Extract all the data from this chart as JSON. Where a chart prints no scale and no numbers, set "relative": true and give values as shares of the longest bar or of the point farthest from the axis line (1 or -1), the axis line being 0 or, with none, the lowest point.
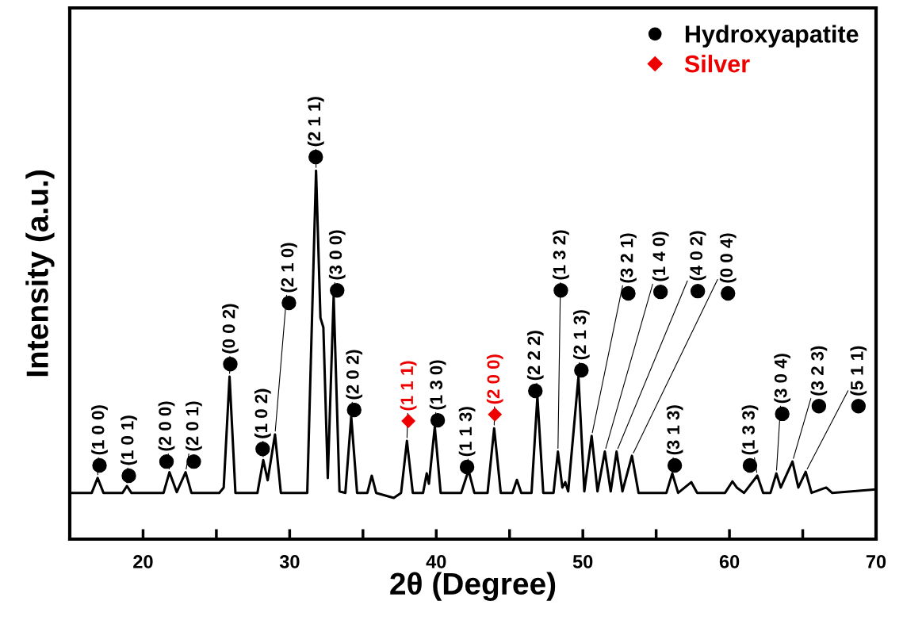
{
  "chart_data": {
    "type": "line",
    "relative": true,
    "xlabel": "2θ (Degree)",
    "ylabel": "Intensity (a.u.)",
    "xlim": [
      15,
      70
    ],
    "xticks": [
      20,
      {
        "value": 25,
        "label": null
      },
      30,
      {
        "value": 35,
        "label": null
      },
      40,
      {
        "value": 45,
        "label": null
      },
      50,
      {
        "value": 55,
        "label": null
      },
      60,
      {
        "value": 65,
        "label": null
      },
      70
    ],
    "legend": "top right",
    "grid": false,
    "x": [
      15,
      16.5,
      16.9,
      17.3,
      18.6,
      18.9,
      19.2,
      20.5,
      21.4,
      21.8,
      22.3,
      22.9,
      23.3,
      25.2,
      25.5,
      25.9,
      26.3,
      27.8,
      28.2,
      28.5,
      29.0,
      29.4,
      31.2,
      31.8,
      32.1,
      32.3,
      32.6,
      33.0,
      33.4,
      33.8,
      34.2,
      34.6,
      35.3,
      35.6,
      35.9,
      37.1,
      37.6,
      38.0,
      38.4,
      39.1,
      39.35,
      39.5,
      39.9,
      40.3,
      41.7,
      42.2,
      42.6,
      43.5,
      43.95,
      44.4,
      45.2,
      45.5,
      45.8,
      46.5,
      46.9,
      47.3,
      48.0,
      48.3,
      48.6,
      48.8,
      49.0,
      49.7,
      50.1,
      50.6,
      51.0,
      51.5,
      51.9,
      52.3,
      52.7,
      53.35,
      53.8,
      55.7,
      56.1,
      56.5,
      57.4,
      57.8,
      59.7,
      60.2,
      60.5,
      61.0,
      61.9,
      62.3,
      62.8,
      63.2,
      63.5,
      64.3,
      64.7,
      65.2,
      65.6,
      66.6,
      67.0,
      70
    ],
    "series": [
      {
        "color": "#000000",
        "values": [
          0.121,
          0.121,
          0.16,
          0.121,
          0.121,
          0.139,
          0.121,
          0.121,
          0.121,
          0.175,
          0.123,
          0.175,
          0.121,
          0.121,
          0.135,
          0.425,
          0.121,
          0.121,
          0.207,
          0.154,
          0.274,
          0.121,
          0.121,
          0.964,
          0.579,
          0.554,
          0.16,
          0.636,
          0.125,
          0.121,
          0.321,
          0.121,
          0.121,
          0.166,
          0.121,
          0.108,
          0.121,
          0.257,
          0.121,
          0.121,
          0.172,
          0.145,
          0.294,
          0.121,
          0.121,
          0.18,
          0.121,
          0.121,
          0.29,
          0.121,
          0.121,
          0.155,
          0.121,
          0.121,
          0.373,
          0.121,
          0.121,
          0.229,
          0.135,
          0.149,
          0.125,
          0.425,
          0.125,
          0.27,
          0.125,
          0.229,
          0.125,
          0.229,
          0.125,
          0.218,
          0.121,
          0.121,
          0.172,
          0.121,
          0.149,
          0.121,
          0.121,
          0.151,
          0.135,
          0.121,
          0.166,
          0.121,
          0.121,
          0.172,
          0.135,
          0.203,
          0.135,
          0.176,
          0.121,
          0.135,
          0.121,
          0.13
        ]
      },
      {
        "type": "scatter",
        "name": "Hydroxyapatite",
        "color": "#000000",
        "marker": "circle",
        "x": [
          17.03,
          19.03,
          21.6,
          23.46,
          25.95,
          28.16,
          29.95,
          31.78,
          33.24,
          34.4,
          40.1,
          42.1,
          46.76,
          48.5,
          49.9,
          53.1,
          55.3,
          57.84,
          59.9,
          56.27,
          61.4,
          63.6,
          66.1,
          68.8
        ],
        "values": [
          0.193,
          0.166,
          0.203,
          0.203,
          0.458,
          0.236,
          0.618,
          1,
          0.651,
          0.338,
          0.311,
          0.189,
          0.388,
          0.651,
          0.442,
          0.643,
          0.647,
          0.649,
          0.643,
          0.193,
          0.193,
          0.328,
          0.348,
          0.348
        ]
      },
      {
        "type": "scatter",
        "name": "Silver",
        "color": "#ee0000",
        "marker": "diamond",
        "x": [
          38.1,
          44.0
        ],
        "values": [
          0.309,
          0.326
        ]
      }
    ],
    "annotations": [
      {
        "text": "(1 0 0)",
        "x": 16.9,
        "y": 0.16
      },
      {
        "text": "(1 0 1)",
        "x": 18.9,
        "y": 0.139
      },
      {
        "text": "(2 0 0)",
        "x": 21.8,
        "y": 0.175
      },
      {
        "text": "(2 0 1)",
        "x": 22.9,
        "y": 0.175
      },
      {
        "text": "(0 0 2)",
        "x": 25.9,
        "y": 0.425
      },
      {
        "text": "(1 0 2)",
        "x": 28.2,
        "y": 0.207
      },
      {
        "text": "(2 1 0)",
        "x": 29.0,
        "y": 0.274
      },
      {
        "text": "(2 1 1)",
        "x": 31.8,
        "y": 0.964
      },
      {
        "text": "(3 0 0)",
        "x": 33.0,
        "y": 0.636
      },
      {
        "text": "(2 0 2)",
        "x": 34.2,
        "y": 0.321
      },
      {
        "text": "(1 3 0)",
        "x": 39.9,
        "y": 0.294
      },
      {
        "text": "(1 1 3)",
        "x": 42.2,
        "y": 0.18
      },
      {
        "text": "(2 2 2)",
        "x": 46.9,
        "y": 0.373
      },
      {
        "text": "(1 3 2)",
        "x": 48.3,
        "y": 0.229
      },
      {
        "text": "(2 1 3)",
        "x": 49.7,
        "y": 0.425
      },
      {
        "text": "(3 2 1)",
        "x": 50.6,
        "y": 0.27
      },
      {
        "text": "(1 4 0)",
        "x": 51.5,
        "y": 0.229
      },
      {
        "text": "(4 0 2)",
        "x": 52.3,
        "y": 0.229
      },
      {
        "text": "(0 0 4)",
        "x": 53.35,
        "y": 0.218
      },
      {
        "text": "(3 1 3)",
        "x": 56.1,
        "y": 0.172
      },
      {
        "text": "(1 3 3)",
        "x": 61.9,
        "y": 0.166
      },
      {
        "text": "(3 0 4)",
        "x": 63.2,
        "y": 0.172
      },
      {
        "text": "(3 2 3)",
        "x": 64.3,
        "y": 0.203
      },
      {
        "text": "(5 1 1)",
        "x": 65.2,
        "y": 0.176
      },
      {
        "text": "(1 1 1)",
        "x": 38.0,
        "y": 0.257
      },
      {
        "text": "(2 0 0)",
        "x": 43.95,
        "y": 0.29
      }
    ]
  }
}
